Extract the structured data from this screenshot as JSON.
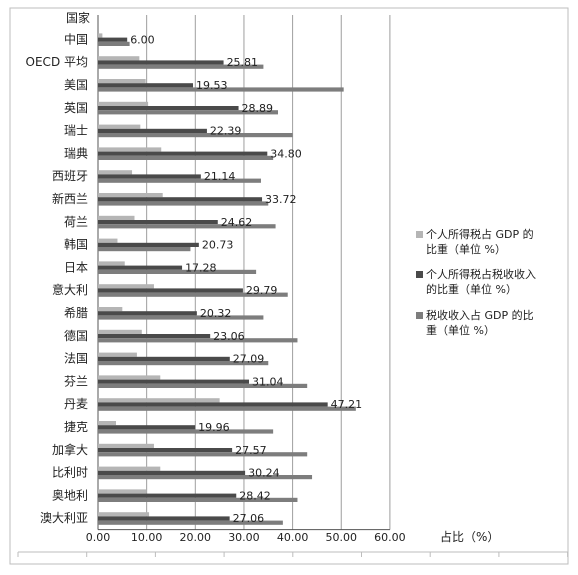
{
  "chart_data": {
    "type": "bar",
    "orientation": "horizontal",
    "category_axis_title": "国家",
    "xlabel": "占比（%）",
    "xlim": [
      0,
      60
    ],
    "x_ticks": [
      "0.00",
      "10.00",
      "20.00",
      "30.00",
      "40.00",
      "50.00",
      "60.00"
    ],
    "grid": true,
    "legend_position": "right",
    "categories": [
      "中国",
      "OECD 平均",
      "美国",
      "英国",
      "瑞士",
      "瑞典",
      "西班牙",
      "新西兰",
      "荷兰",
      "韩国",
      "日本",
      "意大利",
      "希腊",
      "德国",
      "法国",
      "芬兰",
      "丹麦",
      "捷克",
      "加拿大",
      "比利时",
      "奥地利",
      "澳大利亚"
    ],
    "series": [
      {
        "name": "个人所得税占 GDP 的比重（单位 %）",
        "color": "#b5b5b5",
        "values": [
          0.9,
          8.5,
          9.8,
          10.3,
          8.7,
          13.0,
          7.0,
          13.3,
          7.5,
          4.0,
          5.5,
          11.5,
          5.0,
          9.0,
          8.0,
          12.8,
          25.0,
          3.7,
          11.5,
          12.8,
          10.0,
          10.5
        ]
      },
      {
        "name": "个人所得税占税收收入的比重（单位 %）",
        "color": "#4a4a4a",
        "values": [
          6.0,
          25.81,
          19.53,
          28.89,
          22.39,
          34.8,
          21.14,
          33.72,
          24.62,
          20.73,
          17.28,
          29.79,
          20.32,
          23.06,
          27.09,
          31.04,
          47.21,
          19.96,
          27.57,
          30.24,
          28.42,
          27.06
        ]
      },
      {
        "name": "税收收入占 GDP 的比重（单位 %）",
        "color": "#7d7d7d",
        "values": [
          6.5,
          34.0,
          50.5,
          37.0,
          40.0,
          36.0,
          33.5,
          35.0,
          36.5,
          19.0,
          32.5,
          39.0,
          34.0,
          41.0,
          35.0,
          43.0,
          53.0,
          36.0,
          43.0,
          44.0,
          41.0,
          38.0
        ]
      }
    ],
    "value_labels": [
      "6.00",
      "25.81",
      "19.53",
      "28.89",
      "22.39",
      "34.80",
      "21.14",
      "33.72",
      "24.62",
      "20.73",
      "17.28",
      "29.79",
      "20.32",
      "23.06",
      "27.09",
      "31.04",
      "47.21",
      "19.96",
      "27.57",
      "30.24",
      "28.42",
      "27.06"
    ],
    "legend": [
      {
        "line1": "个人所得税占 GDP 的",
        "line2": "比重（单位 %）"
      },
      {
        "line1": "个人所得税占税收收入",
        "line2": "的比重（单位 %）"
      },
      {
        "line1": "税收收入占 GDP 的比",
        "line2": "重（单位 %）"
      }
    ]
  }
}
